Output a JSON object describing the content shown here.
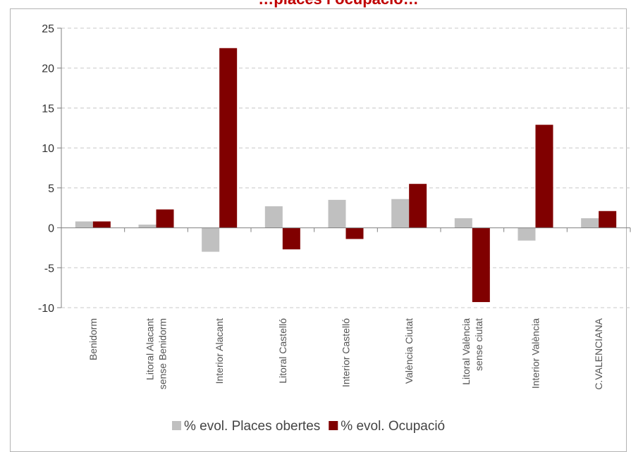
{
  "chart_data": {
    "type": "bar",
    "title": "…places i ocupació…",
    "categories": [
      [
        "Benidorm"
      ],
      [
        "Litoral Alacant",
        "sense Benidorm"
      ],
      [
        "Interior Alacant"
      ],
      [
        "Litoral Castelló"
      ],
      [
        "Interior Castelló"
      ],
      [
        "València Ciutat"
      ],
      [
        "Litoral València",
        "sense ciutat"
      ],
      [
        "Interior València"
      ],
      [
        "C.VALENCIANA"
      ]
    ],
    "series": [
      {
        "name": "% evol. Places obertes",
        "color": "#c0c0c0",
        "values": [
          0.8,
          0.4,
          -3.0,
          2.7,
          3.5,
          3.6,
          1.2,
          -1.6,
          1.2
        ]
      },
      {
        "name": "% evol. Ocupació",
        "color": "#800000",
        "values": [
          0.8,
          2.3,
          22.5,
          -2.7,
          -1.4,
          5.5,
          -9.3,
          12.9,
          2.1
        ]
      }
    ],
    "ylim": [
      -10,
      25
    ],
    "yticks": [
      -10,
      -5,
      0,
      5,
      10,
      15,
      20,
      25
    ],
    "grid": true,
    "legend_position": "bottom"
  }
}
